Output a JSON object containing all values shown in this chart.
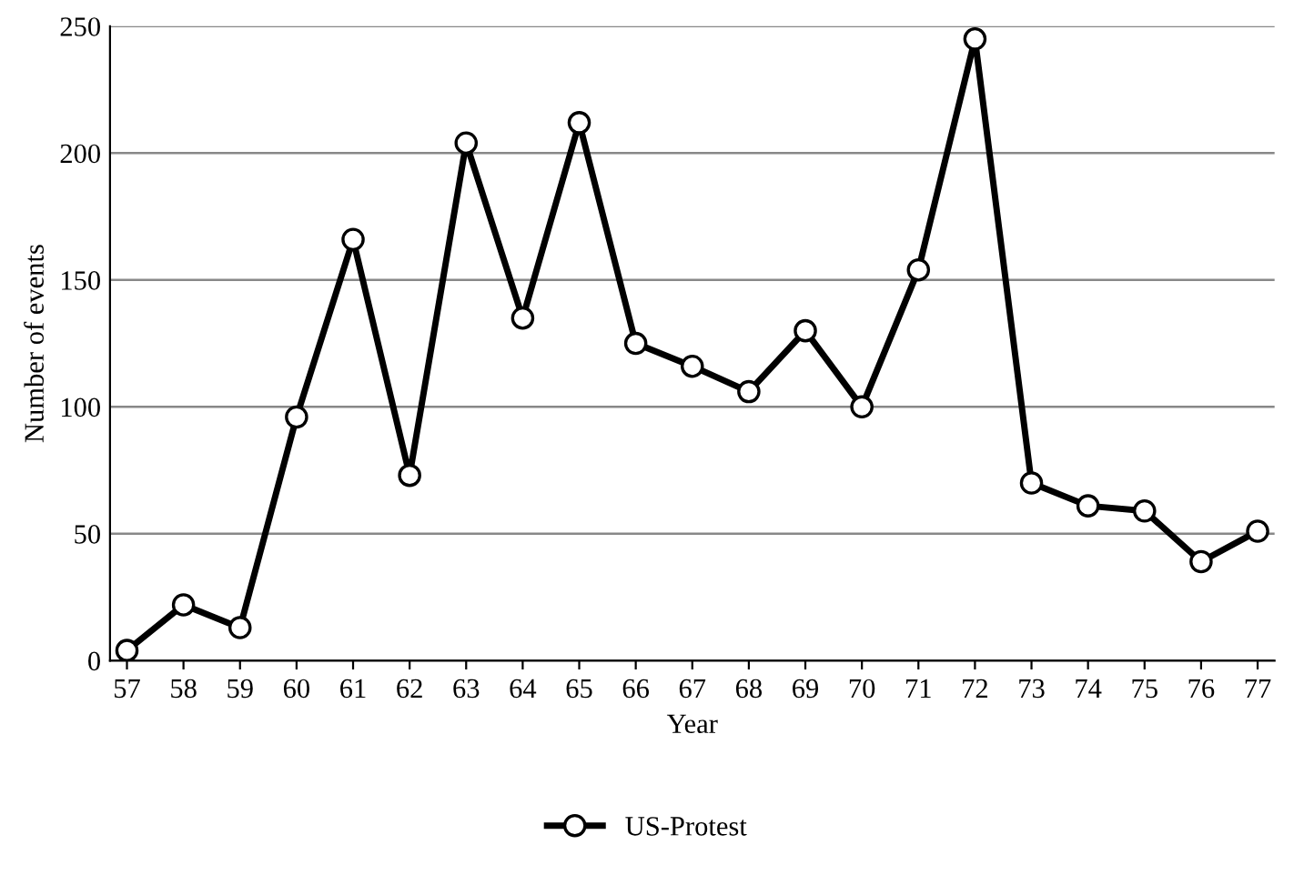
{
  "chart_data": {
    "type": "line",
    "xlabel": "Year",
    "ylabel": "Number of events",
    "categories": [
      "57",
      "58",
      "59",
      "60",
      "61",
      "62",
      "63",
      "64",
      "65",
      "66",
      "67",
      "68",
      "69",
      "70",
      "71",
      "72",
      "73",
      "74",
      "75",
      "76",
      "77"
    ],
    "series": [
      {
        "name": "US-Protest",
        "color": "#000000",
        "values": [
          4,
          22,
          13,
          96,
          166,
          73,
          204,
          135,
          212,
          125,
          116,
          106,
          130,
          100,
          154,
          245,
          70,
          61,
          59,
          39,
          51
        ]
      }
    ],
    "ylim": [
      0,
      250
    ],
    "yticks": [
      0,
      50,
      100,
      150,
      200,
      250
    ],
    "grid": "y",
    "legend": "bottom",
    "marker": "circle",
    "line_style": "solid"
  }
}
